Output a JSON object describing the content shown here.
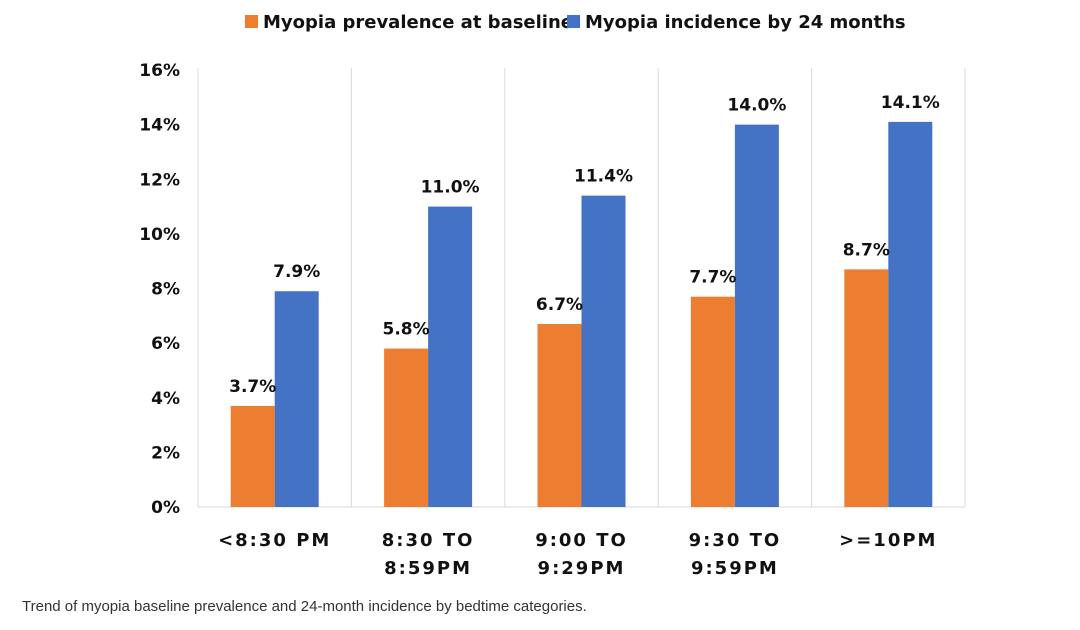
{
  "caption": "Trend of myopia baseline prevalence and 24-month incidence by bedtime categories.",
  "chart_data": {
    "type": "bar",
    "categories": [
      [
        "<8:30 PM"
      ],
      [
        "8:30 TO",
        "8:59PM"
      ],
      [
        "9:00 TO",
        "9:29PM"
      ],
      [
        "9:30 TO",
        "9:59PM"
      ],
      [
        ">=10PM"
      ]
    ],
    "series": [
      {
        "name": "Myopia prevalence at baseline",
        "color": "#ED7D31",
        "values": [
          3.7,
          5.8,
          6.7,
          7.7,
          8.7
        ],
        "labels": [
          "3.7%",
          "5.8%",
          "6.7%",
          "7.7%",
          "8.7%"
        ]
      },
      {
        "name": "Myopia incidence by 24 months",
        "color": "#4472C4",
        "values": [
          7.9,
          11.0,
          11.4,
          14.0,
          14.1
        ],
        "labels": [
          "7.9%",
          "11.0%",
          "11.4%",
          "14.0%",
          "14.1%"
        ]
      }
    ],
    "ylim": [
      0,
      16
    ],
    "yticks": [
      {
        "value": 0,
        "label": "0%"
      },
      {
        "value": 2,
        "label": "2%"
      },
      {
        "value": 4,
        "label": "4%"
      },
      {
        "value": 6,
        "label": "6%"
      },
      {
        "value": 8,
        "label": "8%"
      },
      {
        "value": 10,
        "label": "10%"
      },
      {
        "value": 12,
        "label": "12%"
      },
      {
        "value": 14,
        "label": "14%"
      },
      {
        "value": 16,
        "label": "16%"
      }
    ],
    "legend_position": "top",
    "grid": "vertical category separators"
  }
}
